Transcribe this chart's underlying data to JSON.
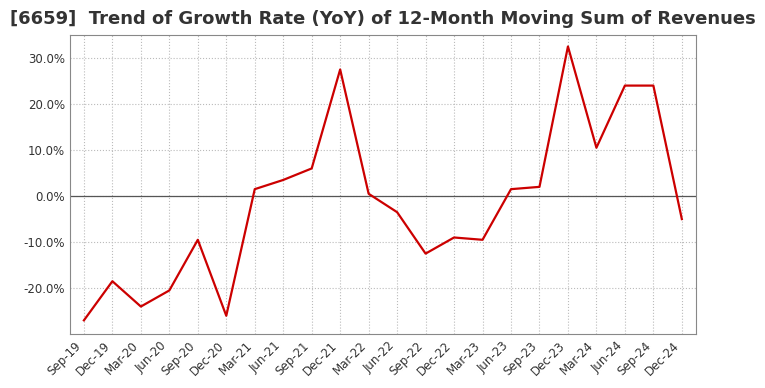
{
  "title": "[6659]  Trend of Growth Rate (YoY) of 12-Month Moving Sum of Revenues",
  "x_labels": [
    "Sep-19",
    "Dec-19",
    "Mar-20",
    "Jun-20",
    "Sep-20",
    "Dec-20",
    "Mar-21",
    "Jun-21",
    "Sep-21",
    "Dec-21",
    "Mar-22",
    "Jun-22",
    "Sep-22",
    "Dec-22",
    "Mar-23",
    "Jun-23",
    "Sep-23",
    "Dec-23",
    "Mar-24",
    "Jun-24",
    "Sep-24",
    "Dec-24"
  ],
  "y_values": [
    -27.0,
    -18.5,
    -24.0,
    -20.5,
    -9.5,
    -26.0,
    1.5,
    3.5,
    6.0,
    27.5,
    0.5,
    -3.5,
    -12.5,
    -9.0,
    -9.5,
    1.5,
    2.0,
    32.5,
    10.5,
    24.0,
    24.0,
    -5.0
  ],
  "line_color": "#cc0000",
  "bg_color": "#ffffff",
  "plot_bg_color": "#ffffff",
  "ylim": [
    -30,
    35
  ],
  "yticks": [
    -20.0,
    -10.0,
    0.0,
    10.0,
    20.0,
    30.0
  ],
  "title_fontsize": 13,
  "zero_line_color": "#555555",
  "grid_color": "#bbbbbb",
  "tick_fontsize": 8.5
}
